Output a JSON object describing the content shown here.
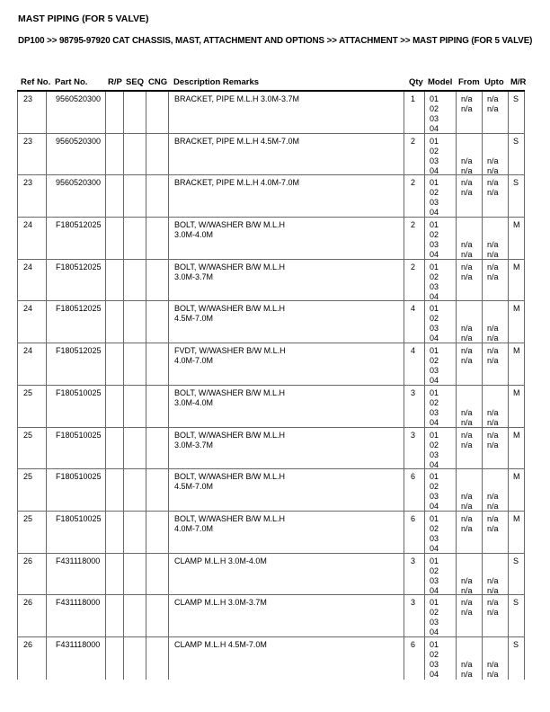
{
  "page": {
    "title": "MAST PIPING (FOR 5 VALVE)",
    "breadcrumb": "DP100 >> 98795-97920 CAT CHASSIS, MAST, ATTACHMENT AND OPTIONS >> ATTACHMENT >> MAST PIPING (FOR 5 VALVE)"
  },
  "table": {
    "columns": [
      "Ref No.",
      "Part No.",
      "R/P",
      "SEQ",
      "CNG",
      "Description Remarks",
      "Qty",
      "Model",
      "From",
      "Upto",
      "M/R"
    ],
    "rows": [
      {
        "ref": "23",
        "part": "9560520300",
        "rp": "",
        "seq": "",
        "cng": "",
        "desc": [
          "BRACKET, PIPE M.L.H 3.0M-3.7M"
        ],
        "qty": "1",
        "model": [
          "01",
          "02",
          "03",
          "04"
        ],
        "from": [
          "n/a",
          "n/a",
          "",
          ""
        ],
        "upto": [
          "n/a",
          "n/a",
          "",
          ""
        ],
        "mr": "S"
      },
      {
        "ref": "23",
        "part": "9560520300",
        "rp": "",
        "seq": "",
        "cng": "",
        "desc": [
          "BRACKET, PIPE M.L.H 4.5M-7.0M"
        ],
        "qty": "2",
        "model": [
          "01",
          "02",
          "03",
          "04"
        ],
        "from": [
          "",
          "",
          "n/a",
          "n/a"
        ],
        "upto": [
          "",
          "",
          "n/a",
          "n/a"
        ],
        "mr": "S"
      },
      {
        "ref": "23",
        "part": "9560520300",
        "rp": "",
        "seq": "",
        "cng": "",
        "desc": [
          "BRACKET, PIPE M.L.H 4.0M-7.0M"
        ],
        "qty": "2",
        "model": [
          "01",
          "02",
          "03",
          "04"
        ],
        "from": [
          "n/a",
          "n/a",
          "",
          ""
        ],
        "upto": [
          "n/a",
          "n/a",
          "",
          ""
        ],
        "mr": "S"
      },
      {
        "ref": "24",
        "part": "F180512025",
        "rp": "",
        "seq": "",
        "cng": "",
        "desc": [
          "BOLT, W/WASHER B/W M.L.H",
          "3.0M-4.0M"
        ],
        "qty": "2",
        "model": [
          "01",
          "02",
          "03",
          "04"
        ],
        "from": [
          "",
          "",
          "n/a",
          "n/a"
        ],
        "upto": [
          "",
          "",
          "n/a",
          "n/a"
        ],
        "mr": "M"
      },
      {
        "ref": "24",
        "part": "F180512025",
        "rp": "",
        "seq": "",
        "cng": "",
        "desc": [
          "BOLT, W/WASHER B/W M.L.H",
          "3.0M-3.7M"
        ],
        "qty": "2",
        "model": [
          "01",
          "02",
          "03",
          "04"
        ],
        "from": [
          "n/a",
          "n/a",
          "",
          ""
        ],
        "upto": [
          "n/a",
          "n/a",
          "",
          ""
        ],
        "mr": "M"
      },
      {
        "ref": "24",
        "part": "F180512025",
        "rp": "",
        "seq": "",
        "cng": "",
        "desc": [
          "BOLT, W/WASHER B/W M.L.H",
          "4.5M-7.0M"
        ],
        "qty": "4",
        "model": [
          "01",
          "02",
          "03",
          "04"
        ],
        "from": [
          "",
          "",
          "n/a",
          "n/a"
        ],
        "upto": [
          "",
          "",
          "n/a",
          "n/a"
        ],
        "mr": "M"
      },
      {
        "ref": "24",
        "part": "F180512025",
        "rp": "",
        "seq": "",
        "cng": "",
        "desc": [
          "FVDT, W/WASHER B/W M.L.H",
          "4.0M-7.0M"
        ],
        "qty": "4",
        "model": [
          "01",
          "02",
          "03",
          "04"
        ],
        "from": [
          "n/a",
          "n/a",
          "",
          ""
        ],
        "upto": [
          "n/a",
          "n/a",
          "",
          ""
        ],
        "mr": "M"
      },
      {
        "ref": "25",
        "part": "F180510025",
        "rp": "",
        "seq": "",
        "cng": "",
        "desc": [
          "BOLT, W/WASHER B/W M.L.H",
          "3.0M-4.0M"
        ],
        "qty": "3",
        "model": [
          "01",
          "02",
          "03",
          "04"
        ],
        "from": [
          "",
          "",
          "n/a",
          "n/a"
        ],
        "upto": [
          "",
          "",
          "n/a",
          "n/a"
        ],
        "mr": "M"
      },
      {
        "ref": "25",
        "part": "F180510025",
        "rp": "",
        "seq": "",
        "cng": "",
        "desc": [
          "BOLT, W/WASHER B/W M.L.H",
          "3.0M-3.7M"
        ],
        "qty": "3",
        "model": [
          "01",
          "02",
          "03",
          "04"
        ],
        "from": [
          "n/a",
          "n/a",
          "",
          ""
        ],
        "upto": [
          "n/a",
          "n/a",
          "",
          ""
        ],
        "mr": "M"
      },
      {
        "ref": "25",
        "part": "F180510025",
        "rp": "",
        "seq": "",
        "cng": "",
        "desc": [
          "BOLT, W/WASHER B/W M.L.H",
          "4.5M-7.0M"
        ],
        "qty": "6",
        "model": [
          "01",
          "02",
          "03",
          "04"
        ],
        "from": [
          "",
          "",
          "n/a",
          "n/a"
        ],
        "upto": [
          "",
          "",
          "n/a",
          "n/a"
        ],
        "mr": "M"
      },
      {
        "ref": "25",
        "part": "F180510025",
        "rp": "",
        "seq": "",
        "cng": "",
        "desc": [
          "BOLT, W/WASHER B/W M.L.H",
          "4.0M-7.0M"
        ],
        "qty": "6",
        "model": [
          "01",
          "02",
          "03",
          "04"
        ],
        "from": [
          "n/a",
          "n/a",
          "",
          ""
        ],
        "upto": [
          "n/a",
          "n/a",
          "",
          ""
        ],
        "mr": "M"
      },
      {
        "ref": "26",
        "part": "F431118000",
        "rp": "",
        "seq": "",
        "cng": "",
        "desc": [
          "CLAMP M.L.H 3.0M-4.0M"
        ],
        "qty": "3",
        "model": [
          "01",
          "02",
          "03",
          "04"
        ],
        "from": [
          "",
          "",
          "n/a",
          "n/a"
        ],
        "upto": [
          "",
          "",
          "n/a",
          "n/a"
        ],
        "mr": "S"
      },
      {
        "ref": "26",
        "part": "F431118000",
        "rp": "",
        "seq": "",
        "cng": "",
        "desc": [
          "CLAMP M.L.H 3.0M-3.7M"
        ],
        "qty": "3",
        "model": [
          "01",
          "02",
          "03",
          "04"
        ],
        "from": [
          "n/a",
          "n/a",
          "",
          ""
        ],
        "upto": [
          "n/a",
          "n/a",
          "",
          ""
        ],
        "mr": "S"
      },
      {
        "ref": "26",
        "part": "F431118000",
        "rp": "",
        "seq": "",
        "cng": "",
        "desc": [
          "CLAMP M.L.H 4.5M-7.0M"
        ],
        "qty": "6",
        "model": [
          "01",
          "02",
          "03",
          "04"
        ],
        "from": [
          "",
          "",
          "n/a",
          "n/a"
        ],
        "upto": [
          "",
          "",
          "n/a",
          "n/a"
        ],
        "mr": "S"
      }
    ]
  }
}
